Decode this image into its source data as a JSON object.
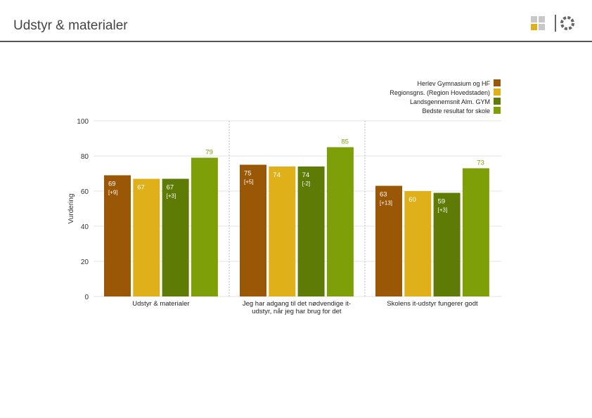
{
  "header": {
    "title": "Udstyr & materialer"
  },
  "chart_data": {
    "type": "bar",
    "ylabel": "Vurdering",
    "xlabel": "",
    "ylim": [
      0,
      100
    ],
    "yticks": [
      "0",
      "20",
      "40",
      "60",
      "80",
      "100"
    ],
    "grid": true,
    "legend_position": "top-right",
    "categories": [
      [
        "Udstyr & materialer"
      ],
      [
        "Jeg har adgang til det nødvendige it-",
        "udstyr, når jeg har brug for det"
      ],
      [
        "Skolens it-udstyr fungerer godt"
      ]
    ],
    "series": [
      {
        "name": "Herlev Gymnasium og HF",
        "color": "#9a5706",
        "values": [
          69,
          75,
          63
        ],
        "labels": [
          "69",
          "75",
          "63"
        ],
        "deltas": [
          "[+9]",
          "[+5]",
          "[+13]"
        ]
      },
      {
        "name": "Regionsgns. (Region Hovedstaden)",
        "color": "#e0b01a",
        "values": [
          67,
          74,
          60
        ],
        "labels": [
          "67",
          "74",
          "60"
        ],
        "deltas": [
          "",
          "",
          ""
        ]
      },
      {
        "name": "Landsgennemsnit Alm. GYM",
        "color": "#5e7b06",
        "values": [
          67,
          74,
          59
        ],
        "labels": [
          "67",
          "74",
          "59"
        ],
        "deltas": [
          "[+3]",
          "[-2]",
          "[+3]"
        ]
      },
      {
        "name": "Bedste resultat for skole",
        "color": "#7e9f07",
        "values": [
          79,
          85,
          73
        ],
        "labels": [
          "79",
          "85",
          "73"
        ],
        "deltas": [
          "",
          "",
          ""
        ]
      }
    ]
  },
  "logo": {
    "squares_color": "#c8c8c8",
    "accent_color": "#e0b01a",
    "ring_color": "#666666"
  }
}
